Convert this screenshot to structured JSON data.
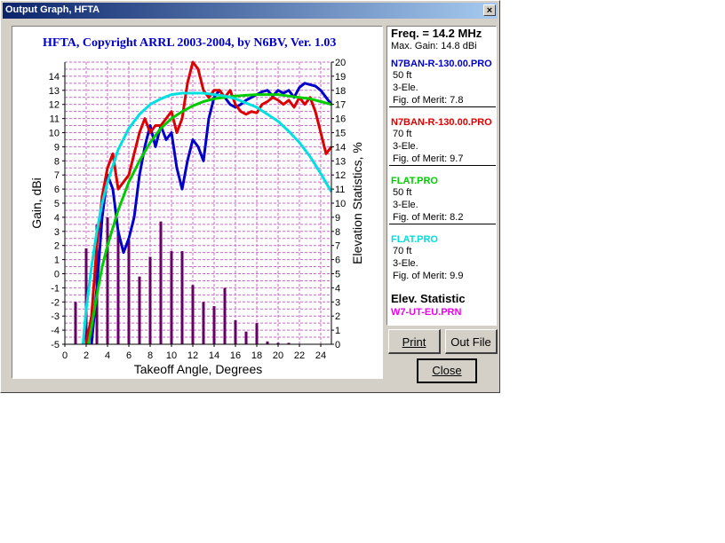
{
  "window": {
    "title": "Output Graph, HFTA",
    "close_glyph": "×"
  },
  "chart_data": {
    "type": "line",
    "title": "HFTA, Copyright ARRL 2003-2004, by N6BV, Ver. 1.03",
    "xlabel": "Takeoff Angle, Degrees",
    "ylabel": "Gain, dBi",
    "y2label": "Elevation Statistics, %",
    "xlim": [
      0,
      25
    ],
    "ylim": [
      -5,
      15
    ],
    "y2lim": [
      0,
      20
    ],
    "xticks": [
      0,
      2,
      4,
      6,
      8,
      10,
      12,
      14,
      16,
      18,
      20,
      22,
      24
    ],
    "yticks": [
      -5,
      -4,
      -3,
      -2,
      -1,
      0,
      1,
      2,
      3,
      4,
      5,
      6,
      7,
      8,
      9,
      10,
      11,
      12,
      13,
      14
    ],
    "y2ticks": [
      0,
      1,
      2,
      3,
      4,
      5,
      6,
      7,
      8,
      9,
      10,
      11,
      12,
      13,
      14,
      15,
      16,
      17,
      18,
      19,
      20
    ],
    "grid": true,
    "series": [
      {
        "name": "N7BAN-R-130.00.PRO",
        "color": "#0000cc",
        "x": [
          2.5,
          3,
          3.5,
          4,
          4.5,
          5,
          5.5,
          6,
          6.5,
          7,
          7.5,
          8,
          8.5,
          9,
          9.5,
          10,
          10.5,
          11,
          11.5,
          12,
          12.5,
          13,
          13.5,
          14,
          14.5,
          15,
          15.5,
          16,
          16.5,
          17,
          17.5,
          18,
          18.5,
          19,
          19.5,
          20,
          20.5,
          21,
          21.5,
          22,
          22.5,
          23,
          23.5,
          24,
          24.5,
          25
        ],
        "values": [
          -5,
          -1,
          4,
          7,
          6,
          3,
          1.5,
          2.5,
          4,
          7,
          9,
          10.5,
          9,
          10.5,
          9.5,
          10,
          7.5,
          6,
          8,
          9.5,
          9,
          8,
          11,
          12.5,
          13,
          12.5,
          12,
          11.8,
          12,
          12.3,
          12.5,
          12.7,
          12.9,
          13,
          12.6,
          13,
          12.8,
          13,
          12.5,
          13.2,
          13.5,
          13.4,
          13.3,
          13,
          12.5,
          12
        ]
      },
      {
        "name": "N7BAN-R-130.00.PRO",
        "color": "#dd0000",
        "x": [
          2,
          2.5,
          3,
          3.5,
          4,
          4.5,
          5,
          5.5,
          6,
          6.5,
          7,
          7.5,
          8,
          8.5,
          9,
          9.5,
          10,
          10.5,
          11,
          11.5,
          12,
          12.5,
          13,
          13.5,
          14,
          14.5,
          15,
          15.5,
          16,
          16.5,
          17,
          17.5,
          18,
          18.5,
          19,
          19.5,
          20,
          20.5,
          21,
          21.5,
          22,
          22.5,
          23,
          23.5,
          24,
          24.5,
          25
        ],
        "values": [
          -5,
          -3,
          2,
          5.5,
          7.5,
          8.5,
          6,
          6.5,
          7,
          8.5,
          10,
          11,
          10,
          10.5,
          10.5,
          11,
          11.5,
          10,
          11,
          13.5,
          15,
          14.5,
          13,
          12.5,
          13,
          13,
          12.5,
          13,
          12,
          11.5,
          11.3,
          11.5,
          11.4,
          12,
          12.2,
          12.5,
          12.3,
          12,
          12.3,
          11.8,
          12.5,
          12,
          12.5,
          11.5,
          10,
          8.5,
          9
        ]
      },
      {
        "name": "FLAT.PRO",
        "color": "#00cc00",
        "x": [
          2.2,
          2.5,
          3,
          3.5,
          4,
          5,
          6,
          7,
          8,
          9,
          10,
          11,
          12,
          13,
          14,
          15,
          16,
          17,
          18,
          19,
          20,
          21,
          22,
          23,
          24,
          25
        ],
        "values": [
          -5,
          -3.8,
          -1.5,
          0.5,
          2,
          4.5,
          6.5,
          8,
          9.3,
          10.3,
          11,
          11.5,
          11.9,
          12.2,
          12.4,
          12.5,
          12.6,
          12.65,
          12.7,
          12.7,
          12.7,
          12.6,
          12.5,
          12.4,
          12.2,
          12
        ]
      },
      {
        "name": "FLAT.PRO",
        "color": "#00e0e0",
        "x": [
          1.7,
          2,
          2.5,
          3,
          3.5,
          4,
          5,
          6,
          7,
          8,
          9,
          10,
          11,
          12,
          13,
          14,
          15,
          16,
          17,
          18,
          19,
          20,
          21,
          22,
          23,
          24,
          25
        ],
        "values": [
          -5,
          -2.5,
          0.5,
          3,
          5,
          6.5,
          8.8,
          10.3,
          11.3,
          12,
          12.4,
          12.7,
          12.8,
          12.8,
          12.8,
          12.7,
          12.6,
          12.4,
          12.1,
          11.8,
          11.3,
          10.8,
          10.1,
          9.3,
          8.3,
          7.1,
          5.8
        ]
      }
    ],
    "bars": {
      "name": "W7-UT-EU.PRN",
      "color": "#660066",
      "x": [
        1,
        2,
        3,
        4,
        5,
        6,
        7,
        8,
        9,
        10,
        11,
        12,
        13,
        14,
        15,
        16,
        17,
        18,
        19,
        20,
        21,
        22,
        23
      ],
      "values": [
        3,
        6.8,
        8.5,
        9,
        8.1,
        7.4,
        4.8,
        6.2,
        8.7,
        6.6,
        6.6,
        4.2,
        3,
        2.7,
        4,
        1.7,
        0.9,
        1.5,
        0.2,
        0.1,
        0.1,
        0,
        0
      ]
    }
  },
  "legend": {
    "freq": "Freq. = 14.2 MHz",
    "max_gain": "Max. Gain: 14.8 dBi",
    "entries": [
      {
        "name": "N7BAN-R-130.00.PRO",
        "color": "#0000cc",
        "height": "50 ft",
        "elements": "3-Ele.",
        "merit": "Fig. of Merit:  7.8"
      },
      {
        "name": "N7BAN-R-130.00.PRO",
        "color": "#dd0000",
        "height": "70 ft",
        "elements": "3-Ele.",
        "merit": "Fig. of Merit:  9.7"
      },
      {
        "name": "FLAT.PRO",
        "color": "#00cc00",
        "height": "50 ft",
        "elements": "3-Ele.",
        "merit": "Fig. of Merit:  8.2"
      },
      {
        "name": "FLAT.PRO",
        "color": "#00dddd",
        "height": "70 ft",
        "elements": "3-Ele.",
        "merit": "Fig. of Merit:  9.9"
      }
    ],
    "elev_heading": "Elev. Statistic",
    "elev_file": "W7-UT-EU.PRN",
    "elev_color": "#ee00ee"
  },
  "buttons": {
    "print": "Print",
    "out_file": "Out File",
    "close": "Close"
  }
}
